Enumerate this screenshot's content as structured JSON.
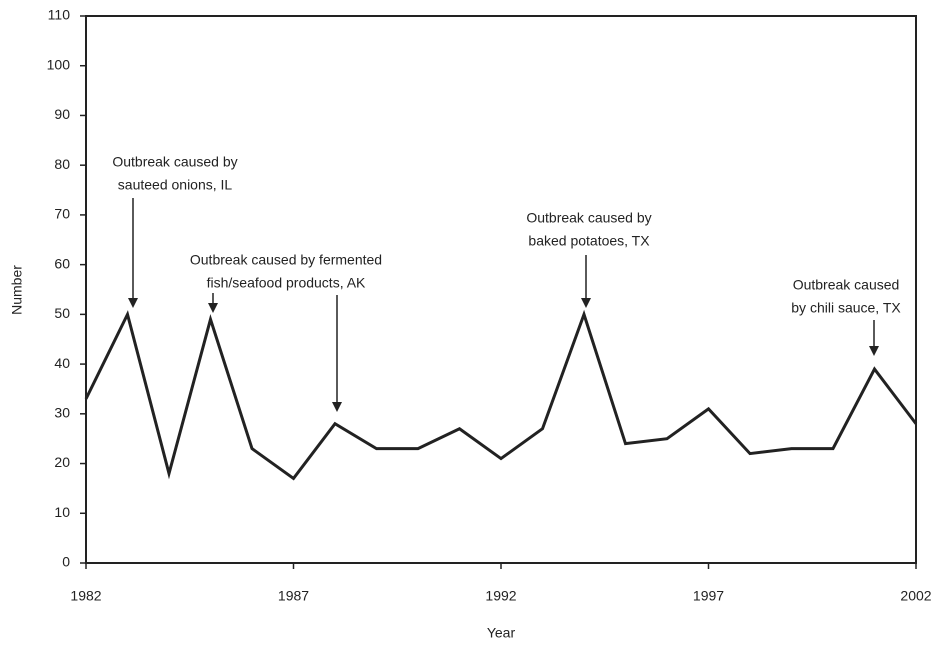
{
  "chart_data": {
    "type": "line",
    "xlabel": "Year",
    "ylabel": "Number",
    "x": [
      1982,
      1983,
      1984,
      1985,
      1986,
      1987,
      1988,
      1989,
      1990,
      1991,
      1992,
      1993,
      1994,
      1995,
      1996,
      1997,
      1998,
      1999,
      2000,
      2001,
      2002
    ],
    "series": [
      {
        "color": "#222222",
        "values": [
          33,
          50,
          18,
          49,
          23,
          17,
          28,
          23,
          23,
          27,
          21,
          27,
          50,
          24,
          25,
          31,
          22,
          23,
          23,
          39,
          28
        ]
      }
    ],
    "xlim": [
      1982,
      2002
    ],
    "xticks": [
      1982,
      1987,
      1992,
      1997,
      2002
    ],
    "ylim": [
      0,
      110
    ],
    "yticks": [
      0,
      10,
      20,
      30,
      40,
      50,
      60,
      70,
      80,
      90,
      100,
      110
    ],
    "grid": false,
    "annotations": [
      [
        "Outbreak caused by",
        "sauteed onions, IL"
      ],
      [
        "Outbreak caused by fermented",
        "fish/seafood products, AK"
      ],
      [
        "Outbreak caused by",
        "baked potatoes, TX"
      ],
      [
        "Outbreak caused",
        "by chili sauce, TX"
      ]
    ]
  }
}
